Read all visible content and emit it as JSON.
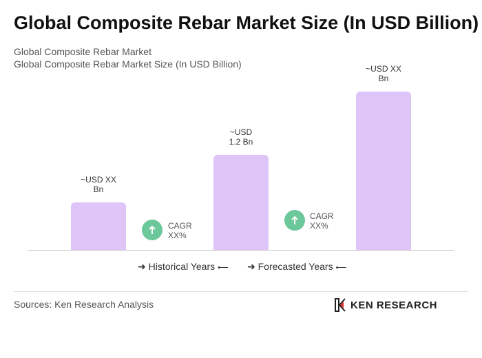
{
  "chart_data": {
    "type": "bar",
    "title": "Global Composite Rebar Market Size (In USD Billion)",
    "subtitle": [
      "Global Composite Rebar Market",
      "Global Composite Rebar Market Size (In USD Billion)"
    ],
    "categories": [
      null,
      null,
      null
    ],
    "values": [
      0.6,
      1.2,
      2.0
    ],
    "value_labels": [
      "~USD XX Bn",
      "~USD 1.2 Bn",
      "~USD XX Bn"
    ],
    "color": "#dfc4f7"
  },
  "cagr": [
    "CAGR XX%",
    "CAGR XX%"
  ],
  "legend": [
    "Historical Years",
    "Forecasted Years"
  ],
  "source": "Sources: Ken Research Analysis",
  "logo": "KEN RESEARCH"
}
